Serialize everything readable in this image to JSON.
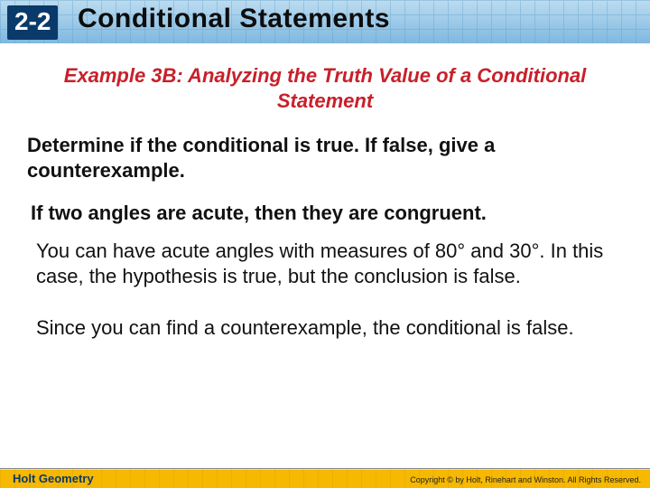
{
  "header": {
    "section_number": "2-2",
    "title": "Conditional Statements",
    "bar_gradient_top": "#bcdcf0",
    "bar_gradient_bottom": "#7fb8e0",
    "section_box_bg": "#0a3a6a",
    "section_box_fg": "#fefefe",
    "title_color": "#0d0d0d"
  },
  "example": {
    "heading": "Example 3B: Analyzing the Truth Value of a Conditional Statement",
    "heading_color": "#c8202a",
    "heading_fontsize": 22
  },
  "instruction": "Determine if the conditional is true. If false, give a counterexample.",
  "statement": "If two angles are acute, then they are congruent.",
  "explanation1": "You can have acute angles with measures of 80° and 30°. In this case, the hypothesis is true, but the conclusion is false.",
  "explanation2": "Since you can find a counterexample, the conditional is false.",
  "footer": {
    "left": "Holt Geometry",
    "right": "Copyright © by Holt, Rinehart and Winston. All Rights Reserved.",
    "bar_color": "#f6b800"
  },
  "body_fontsize": 22,
  "text_color": "#111111",
  "background_color": "#ffffff"
}
